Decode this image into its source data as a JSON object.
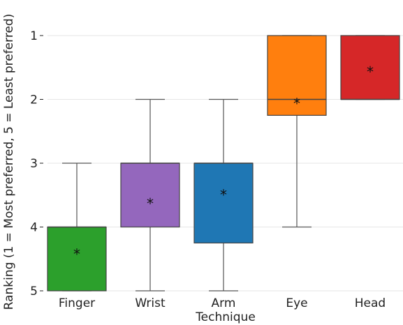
{
  "chart_data": {
    "type": "box",
    "xlabel": "Technique",
    "ylabel": "Ranking (1 = Most preferred, 5 = Least preferred)",
    "ylim": [
      1,
      5
    ],
    "y_inverted": true,
    "yticks": [
      "1",
      "2",
      "3",
      "4",
      "5"
    ],
    "grid": "horizontal",
    "mean_marker": "*",
    "categories": [
      "Finger",
      "Wrist",
      "Arm",
      "Eye",
      "Head"
    ],
    "boxes": [
      {
        "label": "Finger",
        "whisker_low": 3,
        "q1": 4,
        "median": 4,
        "q3": 5,
        "whisker_high": 5,
        "mean": 4.36,
        "color": "#2ca02c"
      },
      {
        "label": "Wrist",
        "whisker_low": 2,
        "q1": 3,
        "median": 3,
        "q3": 4,
        "whisker_high": 5,
        "mean": 3.57,
        "color": "#9467bd"
      },
      {
        "label": "Arm",
        "whisker_low": 2,
        "q1": 3,
        "median": 3,
        "q3": 4.25,
        "whisker_high": 5,
        "mean": 3.43,
        "color": "#1f77b4"
      },
      {
        "label": "Eye",
        "whisker_low": 1,
        "q1": 1,
        "median": 2,
        "q3": 2.25,
        "whisker_high": 4,
        "mean": 2.0,
        "color": "#ff7f0e"
      },
      {
        "label": "Head",
        "whisker_low": 1,
        "q1": 1,
        "median": 2,
        "q3": 2,
        "whisker_high": 2,
        "mean": 1.5,
        "color": "#d62728"
      }
    ]
  }
}
